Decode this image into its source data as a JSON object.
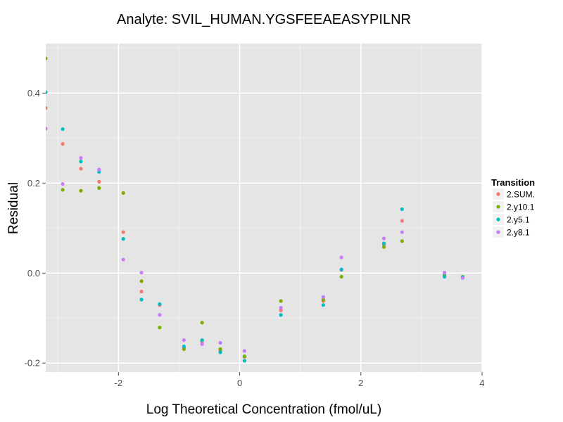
{
  "chart_data": {
    "type": "scatter",
    "title": "Analyte: SVIL_HUMAN.YGSFEEAEASYPILNR",
    "xlabel": "Log Theoretical Concentration (fmol/uL)",
    "ylabel": "Residual",
    "xlim": [
      -3.2,
      4.0
    ],
    "ylim": [
      -0.22,
      0.51
    ],
    "x_ticks": [
      -2,
      0,
      2,
      4
    ],
    "x_tick_labels": [
      "-2",
      "0",
      "2",
      "4"
    ],
    "y_ticks": [
      -0.2,
      0.0,
      0.2,
      0.4
    ],
    "y_tick_labels": [
      "-0.2",
      "0.0",
      "0.2",
      "0.4"
    ],
    "grid": true,
    "legend": {
      "title": "Transition",
      "position": "right"
    },
    "series": [
      {
        "name": "2.SUM.",
        "color": "#F8766D",
        "points": [
          [
            -3.2,
            0.367
          ],
          [
            -2.92,
            0.287
          ],
          [
            -2.62,
            0.232
          ],
          [
            -2.32,
            0.203
          ],
          [
            -1.92,
            0.091
          ],
          [
            -1.62,
            -0.041
          ],
          [
            -1.32,
            -0.071
          ],
          [
            -0.92,
            -0.166
          ],
          [
            -0.62,
            -0.152
          ],
          [
            -0.32,
            -0.172
          ],
          [
            0.08,
            -0.186
          ],
          [
            0.68,
            -0.083
          ],
          [
            1.38,
            -0.062
          ],
          [
            1.68,
            0.007
          ],
          [
            2.38,
            0.063
          ],
          [
            2.68,
            0.116
          ],
          [
            3.38,
            -0.004
          ],
          [
            3.68,
            -0.009
          ]
        ]
      },
      {
        "name": "2.y10.1",
        "color": "#7CAE00",
        "points": [
          [
            -3.2,
            0.477
          ],
          [
            -2.92,
            0.185
          ],
          [
            -2.62,
            0.183
          ],
          [
            -2.32,
            0.189
          ],
          [
            -1.92,
            0.178
          ],
          [
            -1.62,
            -0.018
          ],
          [
            -1.32,
            -0.121
          ],
          [
            -0.92,
            -0.169
          ],
          [
            -0.62,
            -0.11
          ],
          [
            -0.32,
            -0.169
          ],
          [
            0.08,
            -0.185
          ],
          [
            0.68,
            -0.062
          ],
          [
            1.38,
            -0.059
          ],
          [
            1.68,
            -0.008
          ],
          [
            2.38,
            0.058
          ],
          [
            2.68,
            0.071
          ],
          [
            3.38,
            -0.006
          ],
          [
            3.68,
            -0.008
          ]
        ]
      },
      {
        "name": "2.y5.1",
        "color": "#00BFC4",
        "points": [
          [
            -3.2,
            0.402
          ],
          [
            -2.92,
            0.32
          ],
          [
            -2.62,
            0.248
          ],
          [
            -2.32,
            0.225
          ],
          [
            -1.92,
            0.076
          ],
          [
            -1.62,
            -0.059
          ],
          [
            -1.32,
            -0.069
          ],
          [
            -0.92,
            -0.163
          ],
          [
            -0.62,
            -0.149
          ],
          [
            -0.32,
            -0.176
          ],
          [
            0.08,
            -0.195
          ],
          [
            0.68,
            -0.093
          ],
          [
            1.38,
            -0.071
          ],
          [
            1.68,
            0.008
          ],
          [
            2.38,
            0.066
          ],
          [
            2.68,
            0.142
          ],
          [
            3.38,
            -0.008
          ],
          [
            3.68,
            -0.009
          ]
        ]
      },
      {
        "name": "2.y8.1",
        "color": "#C77CFF",
        "points": [
          [
            -3.2,
            0.321
          ],
          [
            -2.92,
            0.198
          ],
          [
            -2.62,
            0.256
          ],
          [
            -2.32,
            0.23
          ],
          [
            -1.92,
            0.03
          ],
          [
            -1.62,
            0.001
          ],
          [
            -1.32,
            -0.093
          ],
          [
            -0.92,
            -0.149
          ],
          [
            -0.62,
            -0.158
          ],
          [
            -0.32,
            -0.155
          ],
          [
            0.08,
            -0.173
          ],
          [
            0.68,
            -0.077
          ],
          [
            1.38,
            -0.053
          ],
          [
            1.68,
            0.035
          ],
          [
            2.38,
            0.077
          ],
          [
            2.68,
            0.091
          ],
          [
            3.38,
            0.001
          ],
          [
            3.68,
            -0.011
          ]
        ]
      }
    ]
  }
}
